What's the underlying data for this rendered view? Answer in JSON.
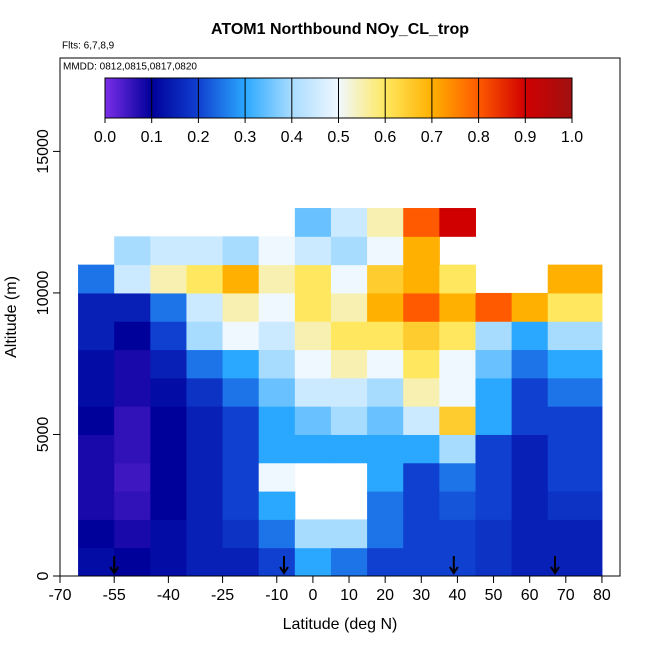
{
  "chart_data": {
    "type": "heatmap",
    "title": "ATOM1 Northbound NOy_CL_trop",
    "subtitle": "Flts: 6,7,8,9",
    "annotation": "MMDD: 0812,0815,0817,0820",
    "x_label": "Latitude (deg N)",
    "y_label": "Altitude (m)",
    "xlim": [
      -70,
      85
    ],
    "ylim": [
      0,
      18300
    ],
    "xticks": [
      -70,
      -55,
      -40,
      -25,
      -10,
      0,
      10,
      20,
      30,
      40,
      50,
      60,
      70,
      80
    ],
    "yticks": [
      0,
      5000,
      10000,
      15000
    ],
    "x_bins": [
      -65,
      -55,
      -45,
      -35,
      -25,
      -15,
      -5,
      5,
      15,
      25,
      35,
      45,
      55,
      65,
      80
    ],
    "y_bins": [
      0,
      1000,
      2000,
      3000,
      4000,
      5000,
      6000,
      7000,
      8000,
      9000,
      10000,
      11000,
      12000,
      13000
    ],
    "values": [
      [
        0.12,
        0.1,
        0.12,
        0.15,
        0.15,
        0.2,
        0.3,
        0.25,
        0.2,
        0.2,
        0.2,
        0.18,
        0.15,
        0.15
      ],
      [
        0.1,
        0.08,
        0.12,
        0.15,
        0.18,
        0.25,
        0.4,
        0.4,
        0.25,
        0.2,
        0.2,
        0.18,
        0.15,
        0.15
      ],
      [
        0.08,
        0.06,
        0.1,
        0.15,
        0.2,
        0.3,
        null,
        null,
        0.25,
        0.2,
        0.22,
        0.2,
        0.15,
        0.18
      ],
      [
        0.08,
        0.05,
        0.1,
        0.15,
        0.2,
        0.5,
        null,
        null,
        0.3,
        0.2,
        0.25,
        0.2,
        0.15,
        0.2
      ],
      [
        0.08,
        0.06,
        0.1,
        0.15,
        0.2,
        0.3,
        0.3,
        0.3,
        0.3,
        0.3,
        0.4,
        0.2,
        0.15,
        0.2
      ],
      [
        0.1,
        0.06,
        0.1,
        0.15,
        0.2,
        0.3,
        0.35,
        0.4,
        0.35,
        0.45,
        0.65,
        0.3,
        0.2,
        0.2
      ],
      [
        0.12,
        0.08,
        0.12,
        0.18,
        0.25,
        0.35,
        0.45,
        0.45,
        0.4,
        0.55,
        0.5,
        0.3,
        0.2,
        0.25
      ],
      [
        0.12,
        0.08,
        0.15,
        0.25,
        0.3,
        0.4,
        0.5,
        0.55,
        0.5,
        0.6,
        0.5,
        0.35,
        0.25,
        0.3
      ],
      [
        0.15,
        0.1,
        0.2,
        0.4,
        0.5,
        0.45,
        0.55,
        0.6,
        0.6,
        0.65,
        0.6,
        0.4,
        0.3,
        0.4
      ],
      [
        0.15,
        0.15,
        0.25,
        0.45,
        0.55,
        0.5,
        0.6,
        0.55,
        0.7,
        0.8,
        0.7,
        0.8,
        0.7,
        0.6
      ],
      [
        0.25,
        0.45,
        0.55,
        0.6,
        0.7,
        0.55,
        0.6,
        0.5,
        0.65,
        0.7,
        0.6,
        null,
        null,
        0.7
      ],
      [
        null,
        0.4,
        0.45,
        0.45,
        0.4,
        0.5,
        0.45,
        0.4,
        0.5,
        0.7,
        null,
        null,
        null,
        null
      ],
      [
        null,
        null,
        null,
        null,
        null,
        null,
        0.35,
        0.45,
        0.55,
        0.8,
        0.9,
        null,
        null,
        null
      ]
    ],
    "colorbar_lim": [
      0,
      1
    ],
    "colorbar_ticks": [
      {
        "value": 0,
        "label": "0.0"
      },
      {
        "value": 0.1,
        "label": "0.1"
      },
      {
        "value": 0.2,
        "label": "0.2"
      },
      {
        "value": 0.3,
        "label": "0.3"
      },
      {
        "value": 0.4,
        "label": "0.4"
      },
      {
        "value": 0.5,
        "label": "0.5"
      },
      {
        "value": 0.6,
        "label": "0.6"
      },
      {
        "value": 0.7,
        "label": "0.7"
      },
      {
        "value": 0.8,
        "label": "0.8"
      },
      {
        "value": 0.9,
        "label": "0.9"
      },
      {
        "value": 1,
        "label": "1.0"
      }
    ],
    "colorscale": [
      "#7b2ee8",
      "#00009a",
      "#1040d0",
      "#2aa8ff",
      "#a8dcff",
      "#f0f8ff",
      "#ffe860",
      "#ffb000",
      "#ff5a00",
      "#d00000",
      "#a01010"
    ],
    "arrows_x": [
      -55,
      -8,
      39,
      67
    ]
  }
}
